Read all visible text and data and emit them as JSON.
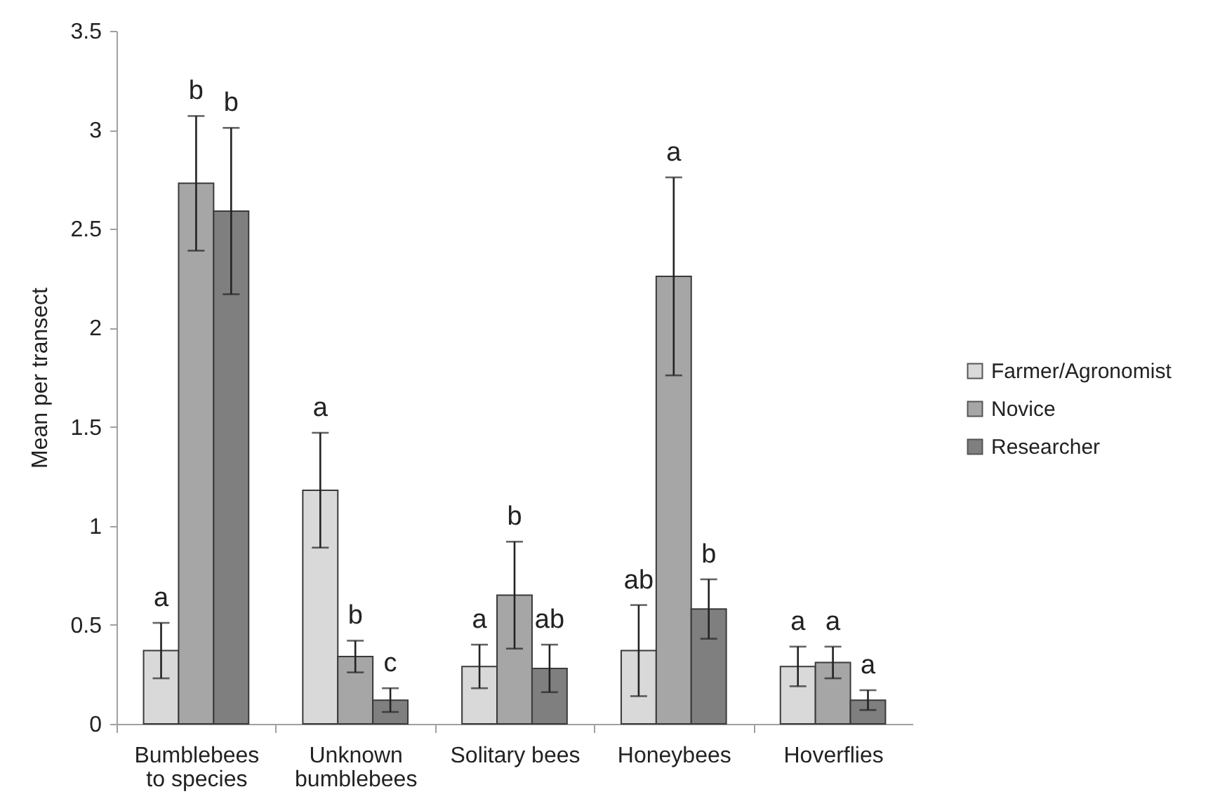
{
  "chart_data": {
    "type": "bar",
    "ylabel": "Mean per transect",
    "categories": [
      "Bumblebees to species",
      "Unknown bumblebees",
      "Solitary bees",
      "Honeybees",
      "Hoverflies"
    ],
    "ylim": [
      0,
      3.5
    ],
    "yticks": [
      0,
      0.5,
      1,
      1.5,
      2,
      2.5,
      3,
      3.5
    ],
    "grid": false,
    "legend": "right",
    "series": [
      {
        "name": "Farmer/Agronomist",
        "color": "#d9d9d9",
        "values": [
          0.37,
          1.18,
          0.29,
          0.37,
          0.29
        ],
        "errors": [
          0.14,
          0.29,
          0.11,
          0.23,
          0.1
        ]
      },
      {
        "name": "Novice",
        "color": "#a6a6a6",
        "values": [
          2.73,
          0.34,
          0.65,
          2.26,
          0.31
        ],
        "errors": [
          0.34,
          0.08,
          0.27,
          0.5,
          0.08
        ]
      },
      {
        "name": "Researcher",
        "color": "#7f7f7f",
        "values": [
          2.59,
          0.12,
          0.28,
          0.58,
          0.12
        ],
        "errors": [
          0.42,
          0.06,
          0.12,
          0.15,
          0.05
        ]
      }
    ],
    "annotations": [
      "a",
      "b",
      "b",
      "a",
      "b",
      "c",
      "a",
      "b",
      "ab",
      "ab",
      "a",
      "b",
      "a",
      "a",
      "a"
    ]
  }
}
